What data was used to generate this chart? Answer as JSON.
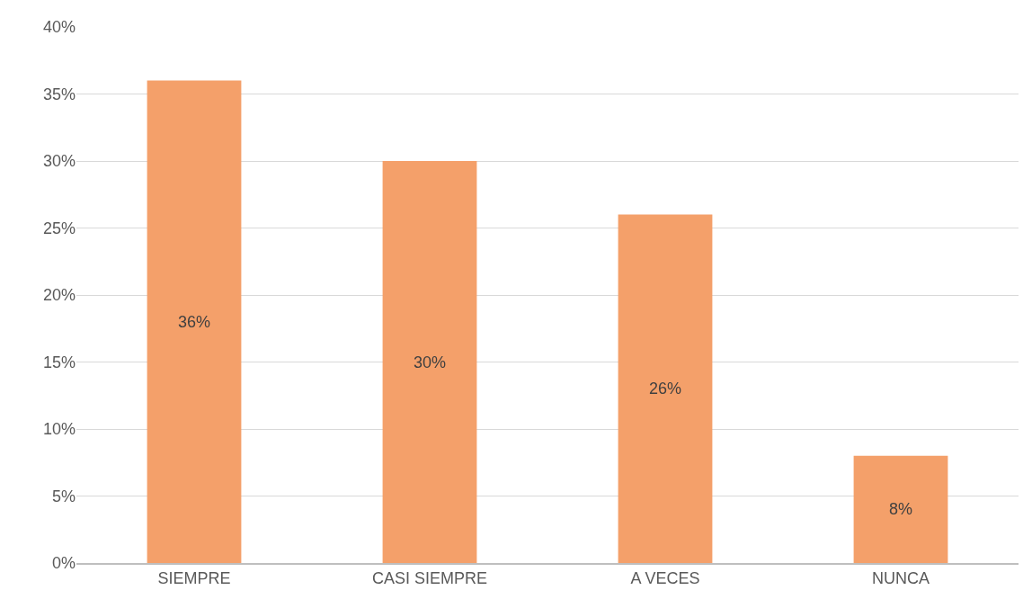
{
  "chart_data": {
    "type": "bar",
    "categories": [
      "SIEMPRE",
      "CASI SIEMPRE",
      "A VECES",
      "NUNCA"
    ],
    "values": [
      36,
      30,
      26,
      8
    ],
    "color": "#f4a06a",
    "value_labels": [
      "36%",
      "30%",
      "26%",
      "8%"
    ],
    "ylim": [
      0,
      40
    ],
    "yticks": [
      {
        "value": 0,
        "label": "0%"
      },
      {
        "value": 5,
        "label": "5%"
      },
      {
        "value": 10,
        "label": "10%"
      },
      {
        "value": 15,
        "label": "15%"
      },
      {
        "value": 20,
        "label": "20%"
      },
      {
        "value": 25,
        "label": "25%"
      },
      {
        "value": 30,
        "label": "30%"
      },
      {
        "value": 35,
        "label": "35%"
      },
      {
        "value": 40,
        "label": "40%"
      }
    ],
    "grid": "y",
    "legend": false
  }
}
